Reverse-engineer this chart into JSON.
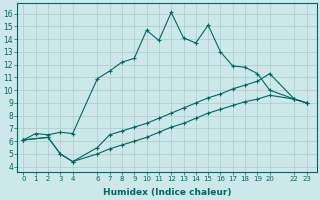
{
  "xlabel": "Humidex (Indice chaleur)",
  "bg_color": "#cce8e8",
  "line_color": "#006666",
  "grid_color": "#aacccc",
  "xticks": [
    0,
    1,
    2,
    3,
    4,
    6,
    7,
    8,
    9,
    10,
    11,
    12,
    13,
    14,
    15,
    16,
    17,
    18,
    19,
    20,
    22,
    23
  ],
  "yticks": [
    4,
    5,
    6,
    7,
    8,
    9,
    10,
    11,
    12,
    13,
    14,
    15,
    16
  ],
  "xlim": [
    -0.5,
    23.8
  ],
  "ylim": [
    3.6,
    16.8
  ],
  "line1_x": [
    0,
    1,
    2,
    3,
    4,
    6,
    7,
    8,
    9,
    10,
    11,
    12,
    13,
    14,
    15,
    16,
    17,
    18,
    19,
    20,
    22,
    23
  ],
  "line1_y": [
    6.1,
    6.6,
    6.5,
    6.7,
    6.6,
    10.9,
    11.5,
    12.2,
    12.5,
    14.7,
    13.9,
    16.1,
    14.1,
    13.7,
    15.1,
    13.0,
    11.9,
    11.8,
    11.3,
    10.0,
    9.3,
    9.0
  ],
  "line2_x": [
    0,
    2,
    3,
    4,
    6,
    7,
    8,
    9,
    10,
    11,
    12,
    13,
    14,
    15,
    16,
    17,
    18,
    19,
    20,
    22,
    23
  ],
  "line2_y": [
    6.1,
    6.3,
    5.0,
    4.4,
    5.0,
    5.4,
    5.7,
    6.0,
    6.3,
    6.7,
    7.1,
    7.4,
    7.8,
    8.2,
    8.5,
    8.8,
    9.1,
    9.3,
    9.6,
    9.3,
    9.0
  ],
  "line3_x": [
    0,
    2,
    3,
    4,
    6,
    7,
    8,
    9,
    10,
    11,
    12,
    13,
    14,
    15,
    16,
    17,
    18,
    19,
    20,
    22,
    23
  ],
  "line3_y": [
    6.1,
    6.3,
    5.0,
    4.4,
    5.5,
    6.5,
    6.8,
    7.1,
    7.4,
    7.8,
    8.2,
    8.6,
    9.0,
    9.4,
    9.7,
    10.1,
    10.4,
    10.7,
    11.3,
    9.3,
    9.0
  ]
}
